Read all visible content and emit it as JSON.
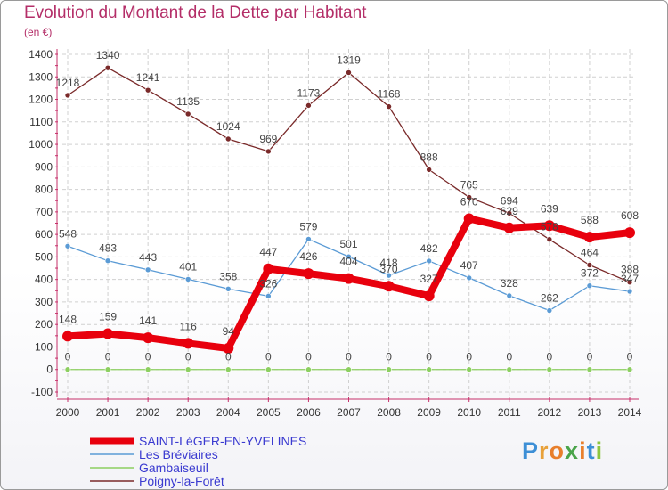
{
  "title": "Evolution du Montant de la Dette par Habitant",
  "subtitle": "(en €)",
  "logo": {
    "text": "Proxiti",
    "letters": [
      "P",
      "r",
      "o",
      "x",
      "i",
      "t",
      "i"
    ],
    "colors": [
      "#3d8fd6",
      "#e8a13a",
      "#e87f2c",
      "#4aa44a",
      "#e87f2c",
      "#3d8fd6",
      "#8dc63f"
    ]
  },
  "chart_data": {
    "type": "line",
    "x": [
      "2000",
      "2001",
      "2002",
      "2003",
      "2004",
      "2005",
      "2006",
      "2007",
      "2008",
      "2009",
      "2010",
      "2011",
      "2012",
      "2013",
      "2014"
    ],
    "ylim": [
      -100,
      1400
    ],
    "yticks": [
      "-100",
      "0",
      "100",
      "200",
      "300",
      "400",
      "500",
      "600",
      "700",
      "800",
      "900",
      "1000",
      "1100",
      "1200",
      "1300",
      "1400"
    ],
    "grid": true,
    "legend_position": "bottom-left",
    "series": [
      {
        "name": "SAINT-LéGER-EN-YVELINES",
        "color": "#e8000d",
        "emphasis": true,
        "values": [
          148,
          159,
          141,
          116,
          94,
          447,
          426,
          404,
          370,
          327,
          670,
          629,
          639,
          588,
          608
        ],
        "labels": [
          "148",
          "159",
          "141",
          "116",
          "94",
          "447",
          "426",
          "404",
          "370",
          "327",
          "670",
          "629",
          "639",
          "588",
          "608"
        ]
      },
      {
        "name": "Les Bréviaires",
        "color": "#5b9bd5",
        "emphasis": false,
        "values": [
          548,
          483,
          443,
          401,
          358,
          326,
          579,
          501,
          418,
          482,
          407,
          328,
          262,
          372,
          347
        ],
        "labels": [
          "548",
          "483",
          "443",
          "401",
          "358",
          "326",
          "579",
          "501",
          "418",
          "482",
          "407",
          "328",
          "262",
          "372",
          "347"
        ]
      },
      {
        "name": "Gambaiseuil",
        "color": "#8ccf60",
        "emphasis": false,
        "values": [
          0,
          0,
          0,
          0,
          0,
          0,
          0,
          0,
          0,
          0,
          0,
          0,
          0,
          0,
          0
        ],
        "labels": [
          "0",
          "0",
          "0",
          "0",
          "0",
          "0",
          "0",
          "0",
          "0",
          "0",
          "0",
          "0",
          "0",
          "0",
          "0"
        ]
      },
      {
        "name": "Poigny-la-Forêt",
        "color": "#7a2a2a",
        "emphasis": false,
        "values": [
          1218,
          1340,
          1241,
          1135,
          1024,
          969,
          1173,
          1319,
          1168,
          888,
          765,
          694,
          578,
          464,
          388
        ],
        "labels": [
          "1218",
          "1340",
          "1241",
          "1135",
          "1024",
          "969",
          "1173",
          "1319",
          "1168",
          "888",
          "765",
          "694",
          "578",
          "464",
          "388"
        ]
      }
    ]
  }
}
